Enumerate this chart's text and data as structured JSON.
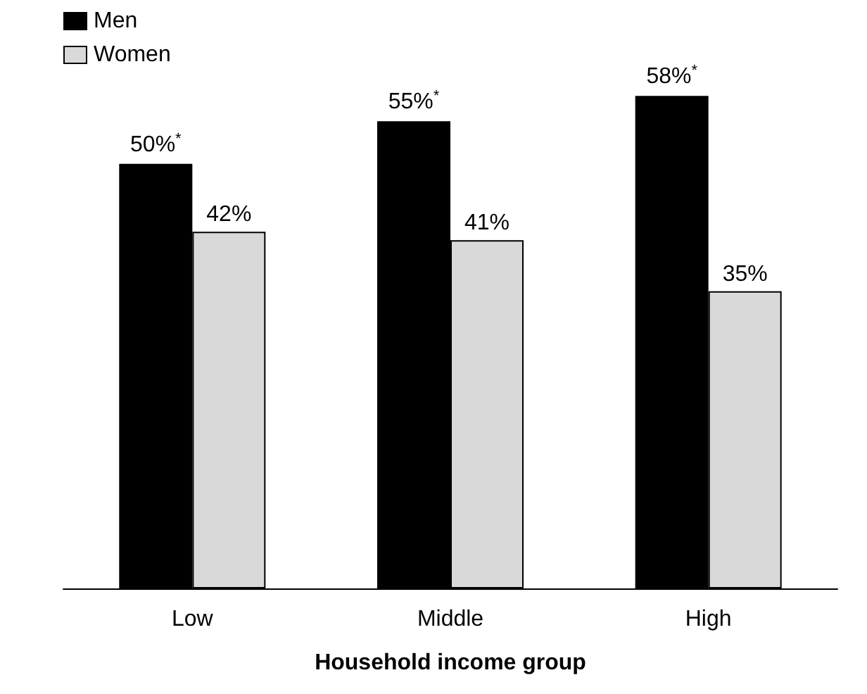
{
  "chart_data": {
    "type": "bar",
    "xlabel": "Household income group",
    "categories": [
      "Low",
      "Middle",
      "High"
    ],
    "series": [
      {
        "name": "Men",
        "color": "#000000",
        "values": [
          50,
          55,
          58
        ],
        "value_labels": [
          "50%$^{*}$",
          "55%$^{*}$",
          "58%$^{*}$"
        ]
      },
      {
        "name": "Women",
        "color": "#d9d9d9",
        "values": [
          42,
          41,
          35
        ],
        "value_labels": [
          "42%",
          "41%",
          "35%"
        ]
      }
    ],
    "tick_labels": "x",
    "grid": false,
    "legend": "top left"
  }
}
